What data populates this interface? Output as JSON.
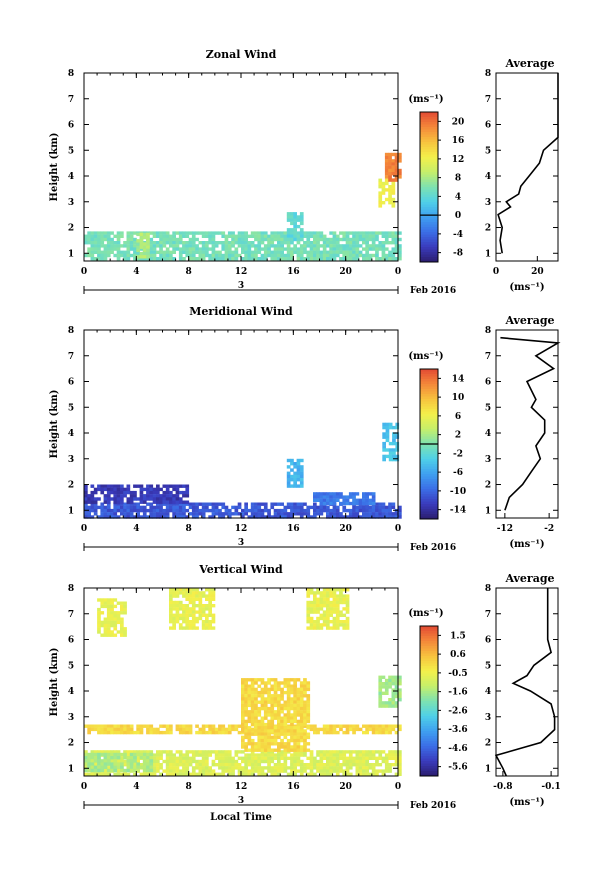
{
  "chart_data": [
    {
      "type": "heatmap",
      "title": "Zonal Wind",
      "ylabel": "Height (km)",
      "xlabel": "",
      "x_ticks": [
        "0",
        "4",
        "8",
        "12",
        "16",
        "20",
        "0"
      ],
      "y_ticks": [
        "1",
        "2",
        "3",
        "4",
        "5",
        "6",
        "7",
        "8"
      ],
      "xlim": [
        0,
        24
      ],
      "ylim": [
        0.7,
        8
      ],
      "date_label": "3",
      "date_suffix": "Feb 2016",
      "colorbar": {
        "unit": "(ms⁻¹)",
        "min": -10,
        "max": 22,
        "ticks": [
          "20",
          "16",
          "12",
          "8",
          "4",
          "0",
          "-4",
          "-8"
        ],
        "marker": 0
      },
      "regions": [
        {
          "x": [
            0,
            24
          ],
          "y": [
            0.85,
            1.85
          ],
          "value": 5.5
        },
        {
          "x": [
            4,
            5
          ],
          "y": [
            0.9,
            1.8
          ],
          "value": 8
        },
        {
          "x": [
            15.5,
            16.5
          ],
          "y": [
            1.5,
            2.6
          ],
          "value": 4
        },
        {
          "x": [
            22.5,
            23.5
          ],
          "y": [
            2.9,
            3.9
          ],
          "value": 12
        },
        {
          "x": [
            23.0,
            24
          ],
          "y": [
            3.9,
            4.9
          ],
          "value": 19
        }
      ],
      "average": {
        "title": "Average",
        "xlabel": "(ms⁻¹)",
        "x_ticks": [
          "0",
          "20"
        ],
        "xlim": [
          0,
          30
        ],
        "height": [
          1,
          1.5,
          2,
          2.5,
          2.8,
          3,
          3.3,
          3.6,
          4,
          4.5,
          5,
          5.5,
          6,
          7,
          8
        ],
        "value": [
          3,
          2,
          3,
          1,
          7,
          5,
          11,
          12,
          16,
          21,
          23,
          30,
          30,
          30,
          30
        ]
      }
    },
    {
      "type": "heatmap",
      "title": "Meridional Wind",
      "ylabel": "Height (km)",
      "xlabel": "",
      "x_ticks": [
        "0",
        "4",
        "8",
        "12",
        "16",
        "20",
        "0"
      ],
      "y_ticks": [
        "1",
        "2",
        "3",
        "4",
        "5",
        "6",
        "7",
        "8"
      ],
      "xlim": [
        0,
        24
      ],
      "ylim": [
        0.7,
        8
      ],
      "date_label": "3",
      "date_suffix": "Feb 2016",
      "colorbar": {
        "unit": "(ms⁻¹)",
        "min": -16,
        "max": 16,
        "ticks": [
          "14",
          "10",
          "6",
          "2",
          "-2",
          "-6",
          "-10",
          "-14"
        ],
        "marker": 0
      },
      "regions": [
        {
          "x": [
            0,
            24
          ],
          "y": [
            0.8,
            1.3
          ],
          "value": -11
        },
        {
          "x": [
            0,
            8
          ],
          "y": [
            1.3,
            2.0
          ],
          "value": -13
        },
        {
          "x": [
            15.5,
            16.5
          ],
          "y": [
            2.0,
            3.0
          ],
          "value": -5
        },
        {
          "x": [
            22.8,
            24
          ],
          "y": [
            3.0,
            4.4
          ],
          "value": -4
        },
        {
          "x": [
            17.5,
            22
          ],
          "y": [
            1.3,
            1.7
          ],
          "value": -9
        }
      ],
      "average": {
        "title": "Average",
        "xlabel": "(ms⁻¹)",
        "x_ticks": [
          "-12",
          "-2"
        ],
        "xlim": [
          -14,
          0
        ],
        "height": [
          1,
          1.5,
          2,
          2.5,
          3,
          3.5,
          4,
          4.5,
          5,
          5.3,
          6,
          6.5,
          7,
          7.5,
          7.7
        ],
        "value": [
          -12,
          -11,
          -8,
          -6,
          -4,
          -5,
          -3,
          -3,
          -6,
          -5,
          -7,
          -1,
          -5,
          0,
          -13
        ]
      }
    },
    {
      "type": "heatmap",
      "title": "Vertical Wind",
      "ylabel": "Height (km)",
      "xlabel": "Local Time",
      "x_ticks": [
        "0",
        "4",
        "8",
        "12",
        "16",
        "20",
        "0"
      ],
      "y_ticks": [
        "1",
        "2",
        "3",
        "4",
        "5",
        "6",
        "7",
        "8"
      ],
      "xlim": [
        0,
        24
      ],
      "ylim": [
        0.7,
        8
      ],
      "date_label": "3",
      "date_suffix": "Feb 2016",
      "colorbar": {
        "unit": "(ms⁻¹)",
        "min": -6,
        "max": 2,
        "ticks": [
          "1.5",
          "0.6",
          "-0.5",
          "-1.6",
          "-2.6",
          "-3.6",
          "-4.6",
          "-5.6"
        ],
        "marker": null
      },
      "regions": [
        {
          "x": [
            0,
            24
          ],
          "y": [
            0.8,
            1.7
          ],
          "value": -0.8
        },
        {
          "x": [
            0,
            5
          ],
          "y": [
            0.9,
            1.6
          ],
          "value": -1.5
        },
        {
          "x": [
            0,
            24
          ],
          "y": [
            2.4,
            2.7
          ],
          "value": 0.0
        },
        {
          "x": [
            12,
            17
          ],
          "y": [
            1.7,
            4.5
          ],
          "value": 0.0
        },
        {
          "x": [
            22.5,
            24
          ],
          "y": [
            3.4,
            4.6
          ],
          "value": -1.6
        },
        {
          "x": [
            1,
            3
          ],
          "y": [
            6.2,
            7.6
          ],
          "value": -0.6
        },
        {
          "x": [
            6.5,
            10
          ],
          "y": [
            6.5,
            8.0
          ],
          "value": -0.6
        },
        {
          "x": [
            17,
            20
          ],
          "y": [
            6.4,
            8.0
          ],
          "value": -0.6
        }
      ],
      "average": {
        "title": "Average",
        "xlabel": "(ms⁻¹)",
        "x_ticks": [
          "-0.8",
          "-0.1"
        ],
        "xlim": [
          -0.9,
          0.0
        ],
        "height": [
          0.7,
          1,
          1.5,
          2,
          2.5,
          3,
          3.5,
          4,
          4.3,
          4.6,
          5,
          5.5,
          6,
          7,
          8
        ],
        "value": [
          -0.75,
          -0.8,
          -0.9,
          -0.25,
          -0.05,
          -0.05,
          -0.1,
          -0.4,
          -0.65,
          -0.45,
          -0.35,
          -0.1,
          -0.15,
          -0.15,
          -0.15
        ]
      }
    }
  ]
}
